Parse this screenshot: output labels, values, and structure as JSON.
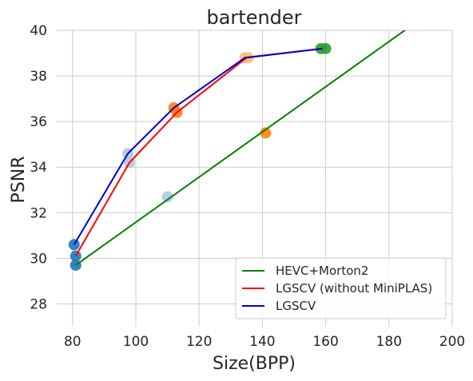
{
  "chart_data": {
    "type": "line",
    "title": "bartender",
    "xlabel": "Size(BPP)",
    "ylabel": "PSNR",
    "xlim": [
      75,
      200
    ],
    "ylim": [
      27,
      40
    ],
    "xticks": [
      80,
      100,
      120,
      140,
      160,
      180,
      200
    ],
    "yticks": [
      28,
      30,
      32,
      34,
      36,
      38,
      40
    ],
    "grid": true,
    "legend_position": "bottom-right",
    "series": [
      {
        "name": "HEVC+Morton2",
        "color": "#008000",
        "line_x": [
          81,
          186
        ],
        "line_y": [
          29.7,
          40.1
        ]
      },
      {
        "name": "LGSCV (without MiniPLAS)",
        "color": "#ff0000",
        "line_x": [
          81,
          98,
          113,
          135,
          159
        ],
        "line_y": [
          30.1,
          34.2,
          36.4,
          38.8,
          39.2
        ]
      },
      {
        "name": "LGSCV",
        "color": "#0000cc",
        "line_x": [
          80.5,
          97.5,
          112,
          134.5,
          159
        ],
        "line_y": [
          30.6,
          34.6,
          36.6,
          38.8,
          39.2
        ]
      }
    ],
    "points": [
      {
        "x": 81,
        "y": 29.7,
        "color": "#1f77b4"
      },
      {
        "x": 81,
        "y": 30.1,
        "color": "#1f77b4"
      },
      {
        "x": 80.5,
        "y": 30.6,
        "color": "#1f77b4"
      },
      {
        "x": 110,
        "y": 32.7,
        "color": "#aec7e8"
      },
      {
        "x": 98,
        "y": 34.2,
        "color": "#aec7e8"
      },
      {
        "x": 97.5,
        "y": 34.6,
        "color": "#aec7e8"
      },
      {
        "x": 141,
        "y": 35.5,
        "color": "#ff7f0e"
      },
      {
        "x": 113,
        "y": 36.4,
        "color": "#ff7f0e"
      },
      {
        "x": 112,
        "y": 36.6,
        "color": "#ff7f0e"
      },
      {
        "x": 134.5,
        "y": 38.8,
        "color": "#ffbb78"
      },
      {
        "x": 135.5,
        "y": 38.8,
        "color": "#ffbb78"
      },
      {
        "x": 158.5,
        "y": 39.2,
        "color": "#2ca02c"
      },
      {
        "x": 160,
        "y": 39.2,
        "color": "#2ca02c"
      }
    ]
  }
}
